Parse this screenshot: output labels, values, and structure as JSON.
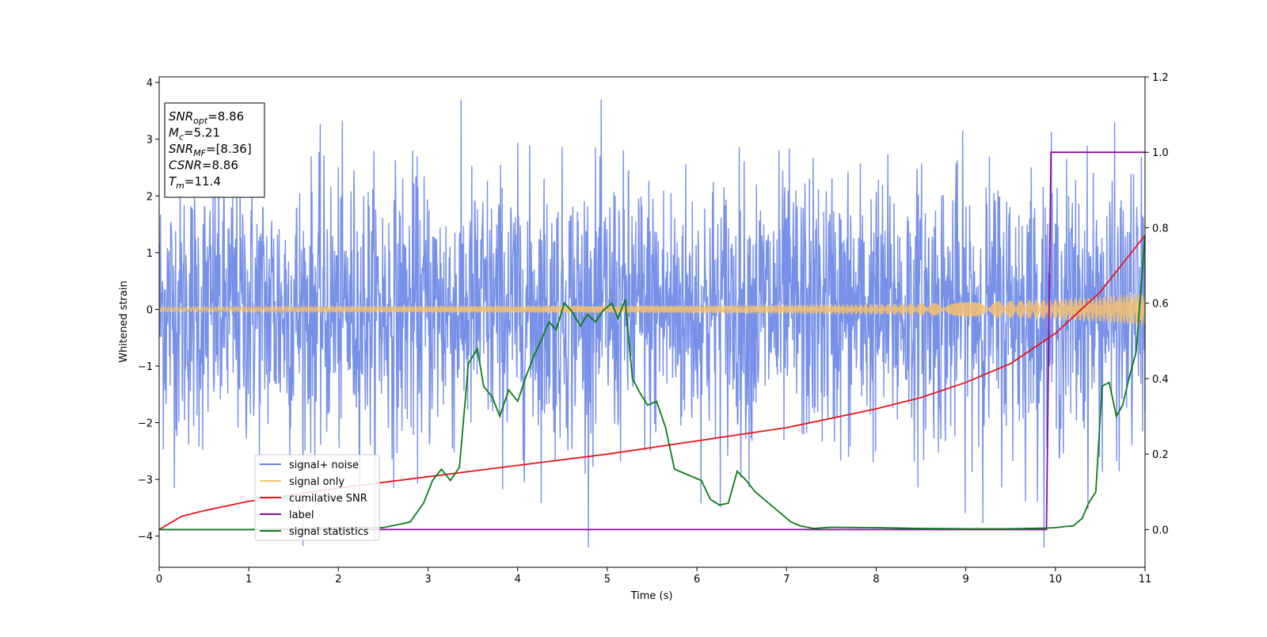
{
  "chart_data": {
    "type": "line",
    "xlabel": "Time (s)",
    "ylabel": "Whitened strain",
    "xlim": [
      0,
      11
    ],
    "ylim": [
      -4.55,
      4.1
    ],
    "y2lim": [
      -0.1,
      1.2
    ],
    "xticks": [
      0,
      1,
      2,
      3,
      4,
      5,
      6,
      7,
      8,
      9,
      10,
      11
    ],
    "yticks": [
      -4,
      -3,
      -2,
      -1,
      0,
      1,
      2,
      3,
      4
    ],
    "y2ticks": [
      0.0,
      0.2,
      0.4,
      0.6,
      0.8,
      1.0,
      1.2
    ],
    "xtick_labels": [
      "0",
      "1",
      "2",
      "3",
      "4",
      "5",
      "6",
      "7",
      "8",
      "9",
      "10",
      "11"
    ],
    "ytick_labels": [
      "−4",
      "−3",
      "−2",
      "−1",
      "0",
      "1",
      "2",
      "3",
      "4"
    ],
    "y2tick_labels": [
      "0.0",
      "0.2",
      "0.4",
      "0.6",
      "0.8",
      "1.0",
      "1.2"
    ],
    "grid": false,
    "legend_position": "lower-left",
    "series": [
      {
        "name": "signal+ noise",
        "axis": "left",
        "color": "#6b87e6",
        "approx_amplitude": 1.2,
        "description_of_values": "dense noisy strain oscillating roughly between -4.2 and 3.7 around 0"
      },
      {
        "name": "signal only",
        "axis": "left",
        "color": "#f5c16e",
        "envelope": {
          "x": [
            0,
            2,
            4,
            6,
            8,
            9,
            10,
            10.5,
            11
          ],
          "y": [
            0.04,
            0.05,
            0.06,
            0.07,
            0.09,
            0.12,
            0.18,
            0.22,
            0.29
          ]
        }
      },
      {
        "name": "cumilative SNR",
        "axis": "right",
        "color": "#e8151b",
        "x": [
          0,
          0.25,
          0.5,
          1,
          2,
          3,
          4,
          5,
          6,
          7,
          8,
          8.5,
          9,
          9.5,
          10,
          10.5,
          11
        ],
        "y": [
          0.0,
          0.035,
          0.05,
          0.075,
          0.11,
          0.14,
          0.17,
          0.2,
          0.235,
          0.27,
          0.32,
          0.35,
          0.39,
          0.44,
          0.52,
          0.63,
          0.78
        ]
      },
      {
        "name": "label",
        "axis": "right",
        "color": "#8b0d99",
        "x": [
          0,
          9.9,
          9.95,
          11
        ],
        "y": [
          0,
          0,
          1,
          1
        ]
      },
      {
        "name": "signal statistics",
        "axis": "right",
        "color": "#0a7d16",
        "x": [
          0,
          1,
          2,
          2.5,
          2.8,
          2.95,
          3.05,
          3.15,
          3.25,
          3.35,
          3.45,
          3.55,
          3.62,
          3.72,
          3.8,
          3.9,
          4.0,
          4.1,
          4.18,
          4.26,
          4.35,
          4.43,
          4.52,
          4.6,
          4.7,
          4.78,
          4.87,
          4.95,
          5.05,
          5.12,
          5.2,
          5.28,
          5.37,
          5.45,
          5.55,
          5.65,
          5.75,
          5.85,
          5.95,
          6.05,
          6.15,
          6.25,
          6.35,
          6.45,
          6.55,
          6.65,
          6.75,
          6.85,
          6.95,
          7.05,
          7.15,
          7.3,
          7.5,
          8.0,
          8.5,
          9.0,
          9.5,
          9.9,
          10.0,
          10.1,
          10.2,
          10.3,
          10.37,
          10.45,
          10.52,
          10.6,
          10.68,
          10.75,
          10.82,
          10.9,
          11.0
        ],
        "y": [
          0.0,
          0.0,
          0.005,
          0.005,
          0.02,
          0.07,
          0.13,
          0.16,
          0.13,
          0.165,
          0.44,
          0.48,
          0.38,
          0.35,
          0.3,
          0.37,
          0.34,
          0.41,
          0.46,
          0.5,
          0.55,
          0.53,
          0.6,
          0.58,
          0.54,
          0.57,
          0.55,
          0.58,
          0.6,
          0.56,
          0.61,
          0.4,
          0.36,
          0.33,
          0.34,
          0.27,
          0.16,
          0.15,
          0.14,
          0.13,
          0.08,
          0.065,
          0.07,
          0.155,
          0.13,
          0.1,
          0.08,
          0.06,
          0.04,
          0.02,
          0.01,
          0.003,
          0.006,
          0.005,
          0.003,
          0.002,
          0.002,
          0.004,
          0.005,
          0.008,
          0.01,
          0.03,
          0.07,
          0.1,
          0.38,
          0.39,
          0.3,
          0.33,
          0.4,
          0.47,
          0.78
        ]
      }
    ],
    "info_box": {
      "position": "top-left",
      "lines": [
        {
          "main": "SNR",
          "sub": "opt",
          "value": "=8.86"
        },
        {
          "main": "M",
          "sub": "c",
          "value": "=5.21"
        },
        {
          "main": "SNR",
          "sub": "MF",
          "value": "=[8.36]"
        },
        {
          "main": "CSNR",
          "sub": "",
          "value": "=8.86"
        },
        {
          "main": "T",
          "sub": "m",
          "value": "=11.4"
        }
      ]
    }
  }
}
